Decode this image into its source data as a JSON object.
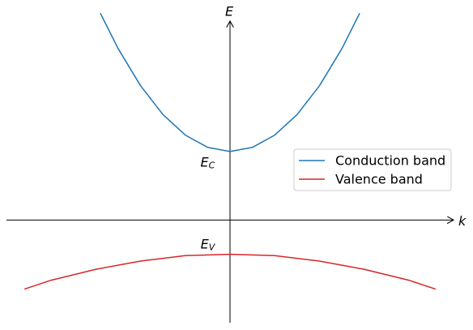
{
  "chart_data": {
    "type": "line",
    "xlabel": "k",
    "ylabel": "E",
    "xlim": [
      -1,
      1
    ],
    "ylim": [
      -1.5,
      3
    ],
    "annotations": [
      {
        "text": "E",
        "sub": "C",
        "x": -0.1,
        "y": 0.84
      },
      {
        "text": "E",
        "sub": "V",
        "x": -0.1,
        "y": -0.36
      }
    ],
    "legend": "right",
    "series": [
      {
        "name": "Conduction band",
        "color": "#1f77b4",
        "x": [
          -0.58,
          -0.5,
          -0.4,
          -0.3,
          -0.2,
          -0.1,
          0,
          0.1,
          0.2,
          0.3,
          0.4,
          0.5,
          0.58
        ],
        "values": [
          3.02,
          2.5,
          1.96,
          1.54,
          1.24,
          1.06,
          1,
          1.06,
          1.24,
          1.54,
          1.96,
          2.5,
          3.02
        ]
      },
      {
        "name": "Valence band",
        "color": "#d62728",
        "x": [
          -0.92,
          -0.8,
          -0.6,
          -0.4,
          -0.2,
          0,
          0.2,
          0.4,
          0.6,
          0.8,
          0.92
        ],
        "values": [
          -1.01,
          -0.88,
          -0.72,
          -0.6,
          -0.52,
          -0.5,
          -0.52,
          -0.6,
          -0.72,
          -0.88,
          -1.01
        ]
      }
    ]
  }
}
